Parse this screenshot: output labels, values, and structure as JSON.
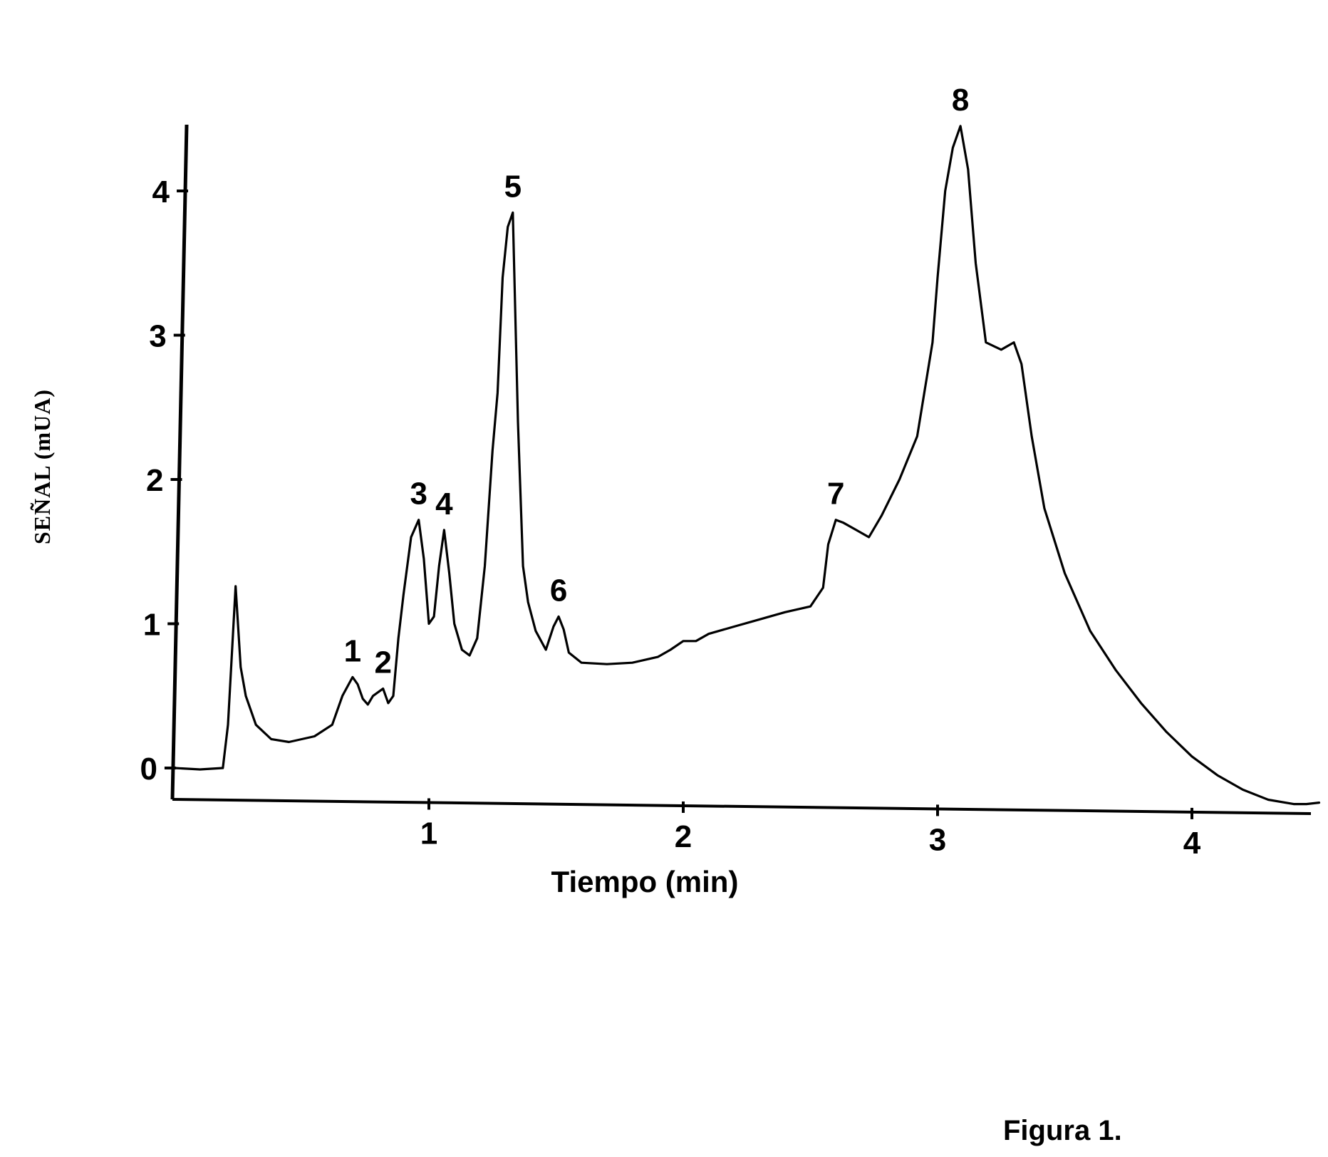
{
  "chart_data": {
    "type": "line",
    "title": "",
    "xlabel": "Tiempo (min)",
    "ylabel": "SEÑAL (mUA)",
    "xlim": [
      -0.02,
      4.5
    ],
    "ylim": [
      -0.2,
      4.45
    ],
    "xticks": [
      "1",
      "2",
      "3",
      "4"
    ],
    "xtick_values": [
      1,
      2,
      3,
      4
    ],
    "yticks": [
      "0",
      "1",
      "2",
      "3",
      "4"
    ],
    "ytick_values": [
      0,
      1,
      2,
      3,
      4
    ],
    "grid": false,
    "series": [
      {
        "name": "",
        "x": [
          0.0,
          0.1,
          0.19,
          0.21,
          0.24,
          0.26,
          0.28,
          0.32,
          0.38,
          0.45,
          0.55,
          0.62,
          0.66,
          0.7,
          0.72,
          0.74,
          0.76,
          0.78,
          0.82,
          0.84,
          0.86,
          0.88,
          0.9,
          0.93,
          0.96,
          0.98,
          1.0,
          1.02,
          1.04,
          1.06,
          1.08,
          1.1,
          1.13,
          1.16,
          1.19,
          1.22,
          1.25,
          1.27,
          1.29,
          1.31,
          1.33,
          1.35,
          1.37,
          1.39,
          1.42,
          1.46,
          1.49,
          1.51,
          1.53,
          1.55,
          1.6,
          1.7,
          1.8,
          1.9,
          1.95,
          2.0,
          2.05,
          2.1,
          2.2,
          2.3,
          2.4,
          2.5,
          2.55,
          2.57,
          2.6,
          2.63,
          2.68,
          2.73,
          2.78,
          2.85,
          2.92,
          2.98,
          3.0,
          3.03,
          3.06,
          3.09,
          3.12,
          3.15,
          3.19,
          3.25,
          3.3,
          3.33,
          3.37,
          3.42,
          3.5,
          3.6,
          3.7,
          3.8,
          3.9,
          4.0,
          4.1,
          4.2,
          4.3,
          4.4,
          4.45,
          4.5
        ],
        "values": [
          0.0,
          -0.01,
          0.0,
          0.3,
          1.26,
          0.7,
          0.5,
          0.3,
          0.2,
          0.18,
          0.22,
          0.3,
          0.5,
          0.63,
          0.58,
          0.48,
          0.44,
          0.5,
          0.55,
          0.45,
          0.5,
          0.9,
          1.2,
          1.6,
          1.72,
          1.45,
          1.0,
          1.05,
          1.4,
          1.65,
          1.35,
          1.0,
          0.82,
          0.78,
          0.9,
          1.4,
          2.2,
          2.6,
          3.4,
          3.75,
          3.85,
          2.4,
          1.4,
          1.15,
          0.95,
          0.82,
          0.98,
          1.05,
          0.96,
          0.8,
          0.73,
          0.72,
          0.73,
          0.77,
          0.82,
          0.88,
          0.88,
          0.93,
          0.98,
          1.03,
          1.08,
          1.12,
          1.25,
          1.55,
          1.72,
          1.7,
          1.65,
          1.6,
          1.75,
          2.0,
          2.3,
          2.95,
          3.4,
          4.0,
          4.3,
          4.45,
          4.15,
          3.5,
          2.95,
          2.9,
          2.95,
          2.8,
          2.3,
          1.8,
          1.35,
          0.95,
          0.68,
          0.45,
          0.25,
          0.08,
          -0.05,
          -0.15,
          -0.22,
          -0.25,
          -0.25,
          -0.24
        ]
      }
    ],
    "annotations": [
      {
        "text": "1",
        "x": 0.7,
        "y": 0.63
      },
      {
        "text": "2",
        "x": 0.82,
        "y": 0.55
      },
      {
        "text": "3",
        "x": 0.96,
        "y": 1.72
      },
      {
        "text": "4",
        "x": 1.06,
        "y": 1.65
      },
      {
        "text": "5",
        "x": 1.33,
        "y": 3.85
      },
      {
        "text": "6",
        "x": 1.51,
        "y": 1.05
      },
      {
        "text": "7",
        "x": 2.6,
        "y": 1.72
      },
      {
        "text": "8",
        "x": 3.09,
        "y": 4.45
      }
    ]
  },
  "caption": "Figura 1."
}
